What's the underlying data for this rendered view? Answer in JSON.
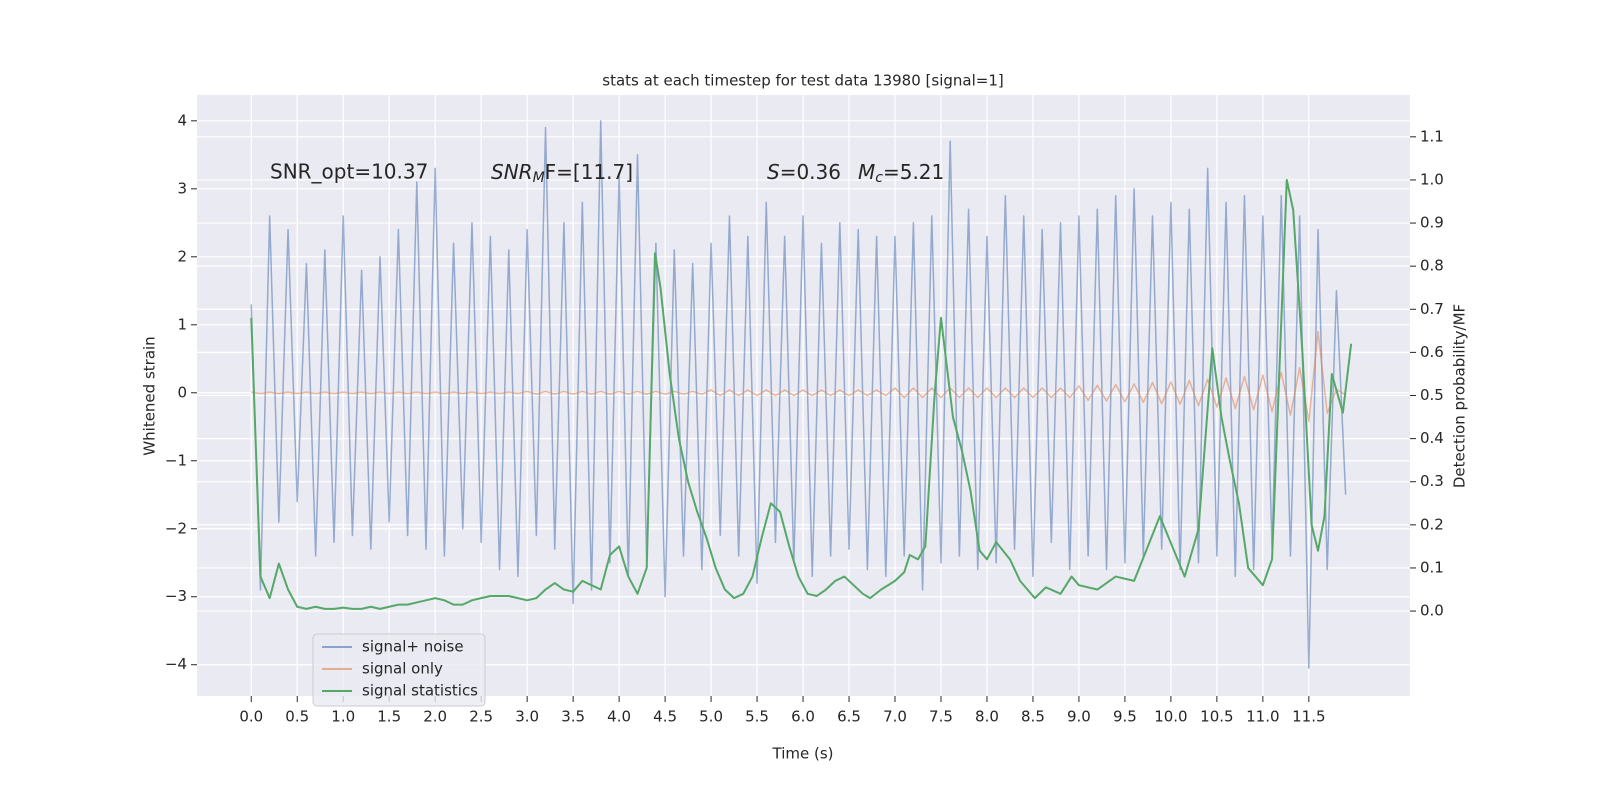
{
  "chart_data": {
    "type": "line",
    "title": "stats at each timestep for test data 13980 [signal=1]",
    "xlabel": "Time (s)",
    "ylabel": "Whitened strain",
    "y2label": "Detection probability/MF",
    "annotations": [
      {
        "text": "SNR_opt=10.37"
      },
      {
        "base": "SNR",
        "sub": "M",
        "rest": "F=[11.7]"
      },
      {
        "base": "S",
        "rest": "=0.36"
      },
      {
        "base": "M",
        "sub": "c",
        "rest": "=5.21"
      }
    ],
    "grid": true,
    "legend": "lower left",
    "xlim": [
      -0.59,
      12.6
    ],
    "ylim": [
      -4.46,
      4.38
    ],
    "y2lim": [
      -0.197,
      1.197
    ],
    "xticks": [
      {
        "value": 0,
        "label": "0.0"
      },
      0.5,
      {
        "value": 1,
        "label": "1.0"
      },
      1.5,
      {
        "value": 2,
        "label": "2.0"
      },
      2.5,
      {
        "value": 3,
        "label": "3.0"
      },
      3.5,
      {
        "value": 4,
        "label": "4.0"
      },
      4.5,
      {
        "value": 5,
        "label": "5.0"
      },
      5.5,
      {
        "value": 6,
        "label": "6.0"
      },
      6.5,
      {
        "value": 7,
        "label": "7.0"
      },
      7.5,
      {
        "value": 8,
        "label": "8.0"
      },
      8.5,
      {
        "value": 9,
        "label": "9.0"
      },
      9.5,
      {
        "value": 10,
        "label": "10.0"
      },
      10.5,
      {
        "value": 11,
        "label": "11.0"
      },
      11.5
    ],
    "yticks": [
      {
        "value": -4,
        "label": "−4"
      },
      {
        "value": -3,
        "label": "−3"
      },
      {
        "value": -2,
        "label": "−2"
      },
      {
        "value": -1,
        "label": "−1"
      },
      0,
      1,
      2,
      3,
      4
    ],
    "y2ticks": [
      {
        "value": 0,
        "label": "0.0"
      },
      0.1,
      0.2,
      0.3,
      0.4,
      0.5,
      0.6,
      0.7,
      0.8,
      0.9,
      {
        "value": 1,
        "label": "1.0"
      },
      1.1
    ],
    "x": [
      0,
      0.1,
      0.2,
      0.3,
      0.4,
      0.5,
      0.6,
      0.7,
      0.8,
      0.9,
      1,
      1.1,
      1.2,
      1.3,
      1.4,
      1.5,
      1.6,
      1.7,
      1.8,
      1.9,
      2,
      2.1,
      2.2,
      2.3,
      2.4,
      2.5,
      2.6,
      2.7,
      2.8,
      2.9,
      3,
      3.1,
      3.2,
      3.3,
      3.4,
      3.5,
      3.6,
      3.7,
      3.8,
      3.9,
      4,
      4.1,
      4.2,
      4.3,
      4.4,
      4.5,
      4.6,
      4.7,
      4.8,
      4.9,
      5,
      5.1,
      5.2,
      5.3,
      5.4,
      5.5,
      5.6,
      5.7,
      5.8,
      5.9,
      6,
      6.1,
      6.2,
      6.3,
      6.4,
      6.5,
      6.6,
      6.7,
      6.8,
      6.9,
      7,
      7.1,
      7.2,
      7.3,
      7.4,
      7.5,
      7.6,
      7.7,
      7.8,
      7.9,
      8,
      8.1,
      8.2,
      8.3,
      8.4,
      8.5,
      8.6,
      8.7,
      8.8,
      8.9,
      9,
      9.1,
      9.2,
      9.3,
      9.4,
      9.5,
      9.6,
      9.7,
      9.8,
      9.9,
      10,
      10.1,
      10.2,
      10.3,
      10.4,
      10.5,
      10.6,
      10.7,
      10.8,
      10.9,
      11,
      11.1,
      11.2,
      11.3,
      11.4,
      11.5,
      11.6,
      11.7,
      11.8,
      11.9
    ],
    "series": [
      {
        "name": "signal+ noise",
        "color": "#4c72b0",
        "values": [
          1.3,
          -2.9,
          2.6,
          -1.9,
          2.4,
          -1.6,
          1.9,
          -2.4,
          2.1,
          -2.2,
          2.6,
          -2.1,
          1.8,
          -2.3,
          2.0,
          -1.9,
          2.4,
          -2.1,
          3.1,
          -2.3,
          3.3,
          -2.4,
          2.2,
          -2.0,
          2.5,
          -2.2,
          2.3,
          -2.6,
          2.1,
          -2.7,
          2.4,
          -2.1,
          3.9,
          -2.3,
          2.5,
          -3.1,
          2.8,
          -2.9,
          4.0,
          -2.5,
          3.2,
          -2.7,
          3.5,
          -2.5,
          2.2,
          -3.0,
          2.1,
          -2.4,
          1.9,
          -2.6,
          2.2,
          -2.1,
          2.6,
          -2.4,
          2.3,
          -2.8,
          2.8,
          -2.2,
          2.3,
          -2.5,
          2.6,
          -2.7,
          2.2,
          -2.4,
          2.5,
          -2.3,
          2.4,
          -2.6,
          2.3,
          -2.7,
          2.3,
          -2.4,
          2.5,
          -2.9,
          2.6,
          -2.5,
          3.7,
          -2.4,
          2.7,
          -2.6,
          2.3,
          -2.5,
          2.9,
          -2.3,
          2.6,
          -2.7,
          2.4,
          -2.2,
          2.5,
          -2.6,
          2.6,
          -2.4,
          2.7,
          -2.6,
          2.9,
          -2.5,
          3.0,
          -2.4,
          2.6,
          -2.3,
          2.8,
          -2.6,
          2.7,
          -2.5,
          3.3,
          -2.4,
          2.8,
          -2.7,
          2.9,
          -2.6,
          2.6,
          -2.3,
          2.9,
          -2.4,
          2.6,
          -4.05,
          2.4,
          -2.6,
          1.5,
          -1.5
        ]
      },
      {
        "name": "signal only",
        "color": "#dd8452",
        "values": [
          0.01,
          -0.01,
          0.01,
          -0.01,
          0.01,
          -0.01,
          0.01,
          -0.01,
          0.01,
          -0.01,
          0.01,
          -0.01,
          0.01,
          -0.01,
          0.01,
          -0.01,
          0.01,
          -0.01,
          0.01,
          -0.01,
          0.01,
          -0.01,
          0.01,
          -0.01,
          0.01,
          -0.01,
          0.01,
          -0.01,
          0.01,
          -0.01,
          0.02,
          -0.02,
          0.02,
          -0.02,
          0.02,
          -0.02,
          0.02,
          -0.02,
          0.02,
          -0.02,
          0.02,
          -0.02,
          0.02,
          -0.02,
          0.02,
          -0.02,
          0.02,
          -0.02,
          0.02,
          -0.02,
          0.04,
          -0.04,
          0.04,
          -0.04,
          0.04,
          -0.04,
          0.04,
          -0.04,
          0.04,
          -0.04,
          0.04,
          -0.04,
          0.04,
          -0.04,
          0.04,
          -0.04,
          0.04,
          -0.04,
          0.04,
          -0.04,
          0.07,
          -0.07,
          0.07,
          -0.07,
          0.07,
          -0.07,
          0.07,
          -0.07,
          0.07,
          -0.07,
          0.07,
          -0.07,
          0.07,
          -0.07,
          0.07,
          -0.07,
          0.07,
          -0.07,
          0.07,
          -0.07,
          0.1,
          -0.11,
          0.11,
          -0.12,
          0.12,
          -0.13,
          0.13,
          -0.14,
          0.15,
          -0.16,
          0.16,
          -0.17,
          0.18,
          -0.19,
          0.2,
          -0.21,
          0.22,
          -0.23,
          0.24,
          -0.25,
          0.26,
          -0.28,
          0.3,
          -0.33,
          0.37,
          -0.42,
          0.9,
          -0.3,
          0.05,
          -0.03
        ]
      },
      {
        "name": "signal statistics",
        "color": "#55a868",
        "axis": "y2",
        "x": [
          0,
          0.1,
          0.2,
          0.3,
          0.4,
          0.5,
          0.6,
          0.7,
          0.8,
          0.9,
          1,
          1.1,
          1.2,
          1.3,
          1.4,
          1.5,
          1.6,
          1.7,
          1.8,
          1.9,
          2,
          2.1,
          2.2,
          2.3,
          2.4,
          2.5,
          2.6,
          2.7,
          2.8,
          2.9,
          3,
          3.1,
          3.2,
          3.3,
          3.4,
          3.5,
          3.6,
          3.7,
          3.8,
          3.9,
          4,
          4.1,
          4.2,
          4.3,
          4.39,
          4.45,
          4.55,
          4.65,
          4.75,
          4.85,
          4.95,
          5.05,
          5.15,
          5.25,
          5.35,
          5.45,
          5.55,
          5.65,
          5.75,
          5.85,
          5.95,
          6.05,
          6.15,
          6.25,
          6.35,
          6.45,
          6.55,
          6.65,
          6.73,
          6.85,
          7,
          7.1,
          7.16,
          7.25,
          7.33,
          7.43,
          7.5,
          7.63,
          7.73,
          7.82,
          7.92,
          8,
          8.1,
          8.25,
          8.36,
          8.52,
          8.64,
          8.8,
          8.92,
          9,
          9.2,
          9.4,
          9.6,
          9.88,
          10.15,
          10.3,
          10.45,
          10.55,
          10.64,
          10.74,
          10.84,
          11,
          11.1,
          11.26,
          11.33,
          11.43,
          11.53,
          11.6,
          11.67,
          11.75,
          11.87,
          11.96
        ],
        "values": [
          0.68,
          0.08,
          0.03,
          0.11,
          0.05,
          0.01,
          0.005,
          0.01,
          0.005,
          0.005,
          0.008,
          0.005,
          0.005,
          0.01,
          0.005,
          0.01,
          0.015,
          0.015,
          0.02,
          0.025,
          0.03,
          0.025,
          0.015,
          0.015,
          0.025,
          0.03,
          0.035,
          0.035,
          0.035,
          0.03,
          0.025,
          0.03,
          0.05,
          0.065,
          0.05,
          0.045,
          0.07,
          0.06,
          0.05,
          0.13,
          0.15,
          0.08,
          0.04,
          0.1,
          0.83,
          0.75,
          0.55,
          0.4,
          0.3,
          0.23,
          0.17,
          0.1,
          0.05,
          0.03,
          0.04,
          0.08,
          0.17,
          0.25,
          0.23,
          0.15,
          0.08,
          0.04,
          0.035,
          0.05,
          0.07,
          0.08,
          0.06,
          0.04,
          0.03,
          0.05,
          0.07,
          0.09,
          0.13,
          0.12,
          0.15,
          0.5,
          0.68,
          0.45,
          0.37,
          0.28,
          0.14,
          0.12,
          0.16,
          0.12,
          0.07,
          0.03,
          0.055,
          0.04,
          0.08,
          0.06,
          0.05,
          0.08,
          0.07,
          0.22,
          0.08,
          0.19,
          0.61,
          0.45,
          0.35,
          0.25,
          0.1,
          0.06,
          0.12,
          1.0,
          0.93,
          0.6,
          0.2,
          0.14,
          0.22,
          0.55,
          0.46,
          0.62
        ]
      }
    ]
  }
}
